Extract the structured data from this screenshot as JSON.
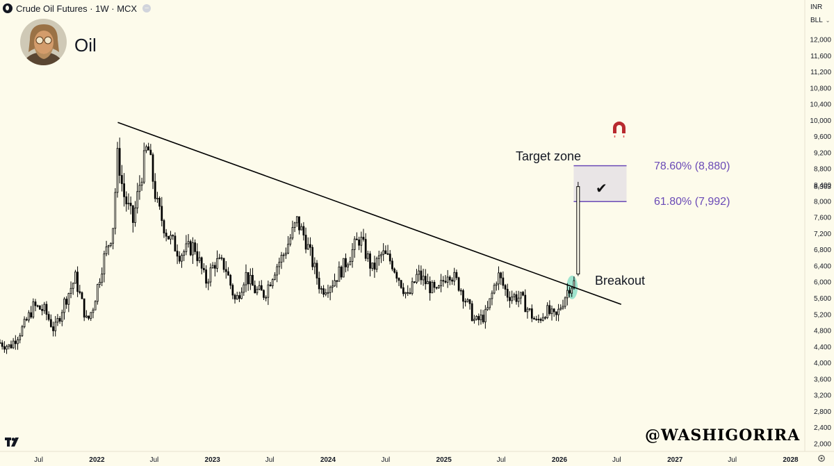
{
  "header": {
    "symbol_title": "Crude Oil Futures · 1W · MCX",
    "currency": "INR",
    "unit": "BLL"
  },
  "avatar": {
    "name": "Oil",
    "icon": "avatar-portrait-icon"
  },
  "annotations": {
    "target_zone": "Target zone",
    "breakout": "Breakout",
    "fib_upper": "78.60% (8,880)",
    "fib_lower": "61.80% (7,992)",
    "check": "✔"
  },
  "watermark": "@WASHIGORIRA",
  "colors": {
    "background": "#fdfbeb",
    "candle": "#000000",
    "fib_line": "#6a4ab6",
    "zone_fill": "#e9e5e6",
    "breakout_highlight": "#7fdcc4",
    "magnet": "#b82a2f"
  },
  "chart_data": {
    "type": "candlestick",
    "title": "Crude Oil Futures · 1W · MCX",
    "xlabel": "",
    "ylabel": "",
    "ylim": [
      1800,
      12600
    ],
    "y_ticks": [
      2000,
      2400,
      2800,
      3200,
      3600,
      4000,
      4400,
      4800,
      5200,
      5600,
      6000,
      6400,
      6800,
      7200,
      7600,
      8000,
      8400,
      8800,
      9200,
      9600,
      10000,
      10400,
      10800,
      11200,
      11600,
      12000
    ],
    "y_tick_labels": [
      "2,000",
      "2,400",
      "2,800",
      "3,200",
      "3,600",
      "4,000",
      "4,400",
      "4,800",
      "5,200",
      "5,600",
      "6,000",
      "6,400",
      "6,800",
      "7,200",
      "7,600",
      "8,000",
      "8,400",
      "8,800",
      "9,200",
      "9,600",
      "10,000",
      "10,400",
      "10,800",
      "11,200",
      "11,600",
      "12,000"
    ],
    "last_price": 8363,
    "last_price_label": "8,363",
    "x_ticks": [
      {
        "date": "2021-07-01",
        "label": "Jul"
      },
      {
        "date": "2022-01-01",
        "label": "2022"
      },
      {
        "date": "2022-07-01",
        "label": "Jul"
      },
      {
        "date": "2023-01-01",
        "label": "2023"
      },
      {
        "date": "2023-07-01",
        "label": "Jul"
      },
      {
        "date": "2024-01-01",
        "label": "2024"
      },
      {
        "date": "2024-07-01",
        "label": "Jul"
      },
      {
        "date": "2025-01-01",
        "label": "2025"
      },
      {
        "date": "2025-07-01",
        "label": "Jul"
      },
      {
        "date": "2026-01-01",
        "label": "2026"
      },
      {
        "date": "2026-07-01",
        "label": "Jul"
      },
      {
        "date": "2027-01-01",
        "label": "2027"
      },
      {
        "date": "2027-07-01",
        "label": "Jul"
      },
      {
        "date": "2028-01-01",
        "label": "2028"
      }
    ],
    "x_start": "2021-03-01",
    "x_end": "2028-02-15",
    "anchors": [
      [
        "2021-03-01",
        4500
      ],
      [
        "2021-04-01",
        4400
      ],
      [
        "2021-05-15",
        4900
      ],
      [
        "2021-06-15",
        5400
      ],
      [
        "2021-07-20",
        5300
      ],
      [
        "2021-08-20",
        4800
      ],
      [
        "2021-09-20",
        5500
      ],
      [
        "2021-10-25",
        6100
      ],
      [
        "2021-12-01",
        5000
      ],
      [
        "2021-12-20",
        5400
      ],
      [
        "2022-01-20",
        6500
      ],
      [
        "2022-02-20",
        7300
      ],
      [
        "2022-03-08",
        9200
      ],
      [
        "2022-03-25",
        8200
      ],
      [
        "2022-04-25",
        7500
      ],
      [
        "2022-05-20",
        8600
      ],
      [
        "2022-06-10",
        9400
      ],
      [
        "2022-07-10",
        7900
      ],
      [
        "2022-08-10",
        7200
      ],
      [
        "2022-09-20",
        6700
      ],
      [
        "2022-11-05",
        6900
      ],
      [
        "2022-12-10",
        6000
      ],
      [
        "2023-01-10",
        6500
      ],
      [
        "2023-02-10",
        6400
      ],
      [
        "2023-03-15",
        5500
      ],
      [
        "2023-04-15",
        6200
      ],
      [
        "2023-05-15",
        5800
      ],
      [
        "2023-06-15",
        5700
      ],
      [
        "2023-07-15",
        6300
      ],
      [
        "2023-08-15",
        6700
      ],
      [
        "2023-09-25",
        7500
      ],
      [
        "2023-10-20",
        7100
      ],
      [
        "2023-12-10",
        5800
      ],
      [
        "2024-01-15",
        6000
      ],
      [
        "2024-02-20",
        6400
      ],
      [
        "2024-04-10",
        7100
      ],
      [
        "2024-05-20",
        6300
      ],
      [
        "2024-06-20",
        6700
      ],
      [
        "2024-07-20",
        6500
      ],
      [
        "2024-09-10",
        5600
      ],
      [
        "2024-10-10",
        6200
      ],
      [
        "2024-12-10",
        5700
      ],
      [
        "2025-01-15",
        6300
      ],
      [
        "2025-02-20",
        5900
      ],
      [
        "2025-04-10",
        5000
      ],
      [
        "2025-05-15",
        5200
      ],
      [
        "2025-06-20",
        6200
      ],
      [
        "2025-07-20",
        5700
      ],
      [
        "2025-09-01",
        5600
      ],
      [
        "2025-10-20",
        5000
      ],
      [
        "2025-11-20",
        5300
      ],
      [
        "2025-12-20",
        5100
      ],
      [
        "2026-01-10",
        5500
      ],
      [
        "2026-02-01",
        5900
      ],
      [
        "2026-02-20",
        6000
      ]
    ],
    "breakout_candle": {
      "date": "2026-03-01",
      "open": 6200,
      "high": 8480,
      "low": 6150,
      "close": 8363
    },
    "trendline": [
      {
        "date": "2022-03-08",
        "price": 9950
      },
      {
        "date": "2026-07-15",
        "price": 5450
      }
    ],
    "target_zone": {
      "from": "2026-02-15",
      "to": "2026-08-01",
      "low": 7992,
      "high": 8880
    },
    "fib_levels": [
      {
        "level": "78.60%",
        "price": 8880
      },
      {
        "level": "61.80%",
        "price": 7992
      }
    ]
  }
}
